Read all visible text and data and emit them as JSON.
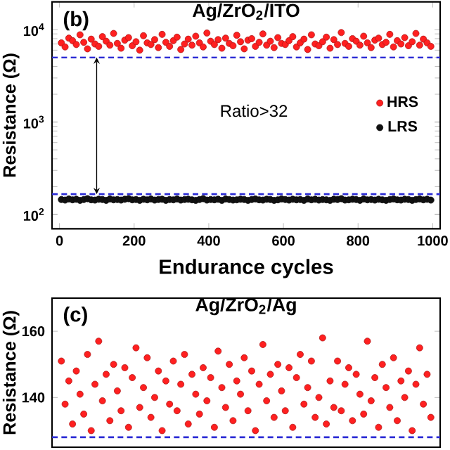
{
  "chart_data": [
    {
      "type": "scatter",
      "title": "Ag/ZrO$_{2}$/ITO",
      "xlabel": "Endurance cycles",
      "ylabel": "Resistance (Ω)",
      "log": "y",
      "marker": "circle",
      "legend": "right",
      "xlim": [
        -20,
        1020
      ],
      "xticks": [
        0,
        200,
        400,
        600,
        800,
        1000
      ],
      "ylim": [
        70,
        20000
      ],
      "yticks": [
        {
          "value": 100,
          "label": "10$^{2}$"
        },
        {
          "value": 1000,
          "label": "10$^{3}$"
        },
        {
          "value": 10000,
          "label": "10$^{4}$"
        }
      ],
      "x": [
        5,
        15,
        25,
        35,
        45,
        55,
        65,
        75,
        85,
        95,
        105,
        115,
        125,
        135,
        145,
        155,
        165,
        175,
        185,
        195,
        205,
        215,
        225,
        235,
        245,
        255,
        265,
        275,
        285,
        295,
        305,
        315,
        325,
        335,
        345,
        355,
        365,
        375,
        385,
        395,
        405,
        415,
        425,
        435,
        445,
        455,
        465,
        475,
        485,
        495,
        505,
        515,
        525,
        535,
        545,
        555,
        565,
        575,
        585,
        595,
        605,
        615,
        625,
        635,
        645,
        655,
        665,
        675,
        685,
        695,
        705,
        715,
        725,
        735,
        745,
        755,
        765,
        775,
        785,
        795,
        805,
        815,
        825,
        835,
        845,
        855,
        865,
        875,
        885,
        895,
        905,
        915,
        925,
        935,
        945,
        955,
        965,
        975,
        985,
        995
      ],
      "series": [
        {
          "name": "HRS",
          "color": "#ff2020",
          "values": [
            7200,
            6500,
            8100,
            7600,
            6900,
            8800,
            7300,
            6200,
            7900,
            7000,
            6600,
            8400,
            7500,
            6800,
            9100,
            7100,
            6300,
            7700,
            8200,
            6700,
            7400,
            6000,
            8600,
            7200,
            6900,
            7800,
            6400,
            8900,
            7300,
            6600,
            7600,
            8300,
            6100,
            7000,
            7900,
            6800,
            8500,
            7200,
            6500,
            9200,
            7500,
            6900,
            7800,
            6300,
            8100,
            7100,
            6700,
            8700,
            7400,
            6200,
            7700,
            8000,
            6600,
            7300,
            9000,
            6800,
            7500,
            6400,
            8200,
            7100,
            6900,
            7600,
            8400,
            6500,
            7200,
            7900,
            6100,
            8800,
            7000,
            6700,
            7400,
            8300,
            6300,
            7800,
            6900,
            9300,
            7100,
            6600,
            8000,
            7500,
            6800,
            8500,
            7200,
            6400,
            7700,
            8100,
            6900,
            7300,
            8900,
            6500,
            7600,
            7000,
            8200,
            6700,
            7400,
            9100,
            6800,
            7900,
            7200,
            6600
          ]
        },
        {
          "name": "LRS",
          "color": "#111111",
          "values": [
            145,
            143,
            147,
            144,
            146,
            142,
            145,
            148,
            144,
            143,
            146,
            145,
            142,
            147,
            144,
            145,
            143,
            146,
            148,
            144,
            145,
            142,
            146,
            144,
            147,
            143,
            145,
            146,
            142,
            145,
            144,
            147,
            143,
            145,
            146,
            144,
            142,
            145,
            148,
            143,
            145,
            144,
            146,
            142,
            147,
            145,
            143,
            144,
            146,
            145,
            142,
            145,
            147,
            144,
            143,
            146,
            145,
            142,
            144,
            147,
            145,
            143,
            146,
            144,
            145,
            142,
            147,
            144,
            146,
            143,
            145,
            144,
            142,
            146,
            145,
            148,
            143,
            144,
            146,
            145,
            142,
            147,
            144,
            145,
            143,
            146,
            144,
            142,
            145,
            147,
            144,
            143,
            146,
            145,
            142,
            145,
            147,
            144,
            146,
            143
          ]
        }
      ],
      "ref_lines": [
        {
          "axis": "y",
          "value": 5000,
          "color": "#2a2ad4",
          "line_style": "dashed"
        },
        {
          "axis": "y",
          "value": 166,
          "color": "#2a2ad4",
          "line_style": "dashed"
        }
      ],
      "annotations": [
        "(b)",
        "Ratio>32"
      ]
    },
    {
      "type": "scatter",
      "title": "Ag/ZrO$_{2}$/Ag",
      "ylabel": "Resistance (Ω)",
      "marker": "circle",
      "tick_labels": "y",
      "xlim": [
        -20,
        1020
      ],
      "ylim": [
        125,
        170
      ],
      "yticks": [
        140,
        160
      ],
      "x": [
        5,
        15,
        25,
        35,
        45,
        55,
        65,
        75,
        85,
        95,
        105,
        115,
        125,
        135,
        145,
        155,
        165,
        175,
        185,
        195,
        205,
        215,
        225,
        235,
        245,
        255,
        265,
        275,
        285,
        295,
        305,
        315,
        325,
        335,
        345,
        355,
        365,
        375,
        385,
        395,
        405,
        415,
        425,
        435,
        445,
        455,
        465,
        475,
        485,
        495,
        505,
        515,
        525,
        535,
        545,
        555,
        565,
        575,
        585,
        595,
        605,
        615,
        625,
        635,
        645,
        655,
        665,
        675,
        685,
        695,
        705,
        715,
        725,
        735,
        745,
        755,
        765,
        775,
        785,
        795,
        805,
        815,
        825,
        835,
        845,
        855,
        865,
        875,
        885,
        895,
        905,
        915,
        925,
        935,
        945,
        955,
        965,
        975,
        985,
        995
      ],
      "series": [
        {
          "color": "#ff2020",
          "values": [
            151,
            138,
            145,
            132,
            148,
            141,
            135,
            153,
            130,
            144,
            157,
            139,
            147,
            133,
            150,
            142,
            136,
            149,
            131,
            146,
            155,
            137,
            143,
            152,
            134,
            140,
            148,
            130,
            145,
            138,
            151,
            136,
            144,
            153,
            132,
            147,
            141,
            135,
            149,
            139,
            146,
            131,
            154,
            143,
            137,
            150,
            133,
            145,
            141,
            152,
            136,
            148,
            130,
            144,
            156,
            139,
            147,
            134,
            150,
            142,
            136,
            149,
            131,
            146,
            153,
            138,
            143,
            151,
            134,
            140,
            158,
            132,
            145,
            137,
            151,
            136,
            144,
            149,
            133,
            147,
            141,
            135,
            157,
            139,
            146,
            131,
            150,
            143,
            137,
            152,
            133,
            145,
            140,
            148,
            130,
            144,
            155,
            138,
            147,
            134
          ]
        }
      ],
      "ref_lines": [
        {
          "axis": "y",
          "value": 128,
          "color": "#2a2ad4",
          "line_style": "dashed"
        }
      ],
      "annotations": [
        "(c)"
      ]
    }
  ]
}
